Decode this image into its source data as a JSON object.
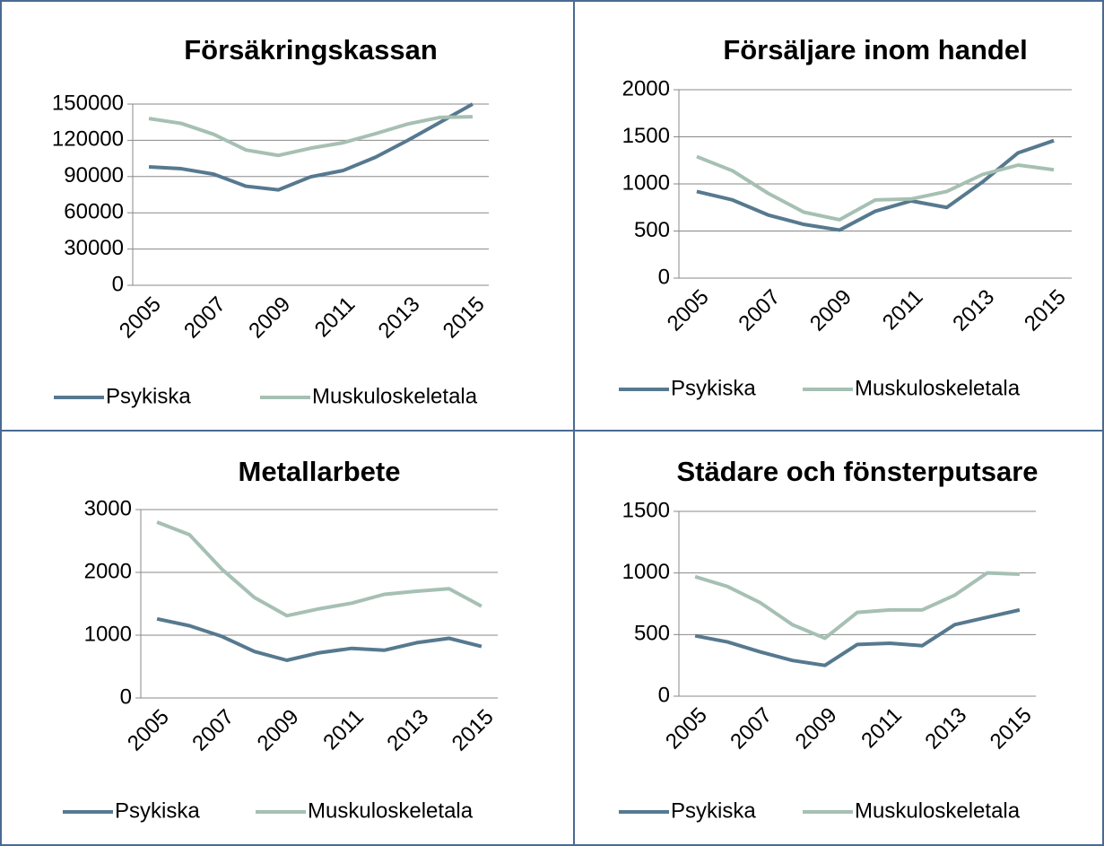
{
  "chart_data": [
    {
      "type": "line",
      "title": "Försäkringskassan",
      "categories": [
        "2005",
        null,
        "2007",
        null,
        "2009",
        null,
        "2011",
        null,
        "2013",
        null,
        "2015"
      ],
      "series": [
        {
          "name": "Psykiska",
          "color": "#56798f",
          "values": [
            98000,
            96500,
            92000,
            82000,
            79000,
            89800,
            95000,
            106000,
            120000,
            135000,
            150000
          ]
        },
        {
          "name": "Muskuloskeletala",
          "color": "#a6c0b3",
          "values": [
            138000,
            134000,
            125000,
            112000,
            107500,
            113500,
            118000,
            125500,
            133500,
            139000,
            139500
          ]
        }
      ],
      "ylim": [
        0,
        150000
      ],
      "yticks": [
        0,
        30000,
        60000,
        90000,
        120000,
        150000
      ],
      "grid": true
    },
    {
      "type": "line",
      "title": "Försäljare inom handel",
      "categories": [
        "2005",
        null,
        "2007",
        null,
        "2009",
        null,
        "2011",
        null,
        "2013",
        null,
        "2015"
      ],
      "series": [
        {
          "name": "Psykiska",
          "color": "#56798f",
          "values": [
            920,
            830,
            670,
            570,
            510,
            710,
            820,
            750,
            1020,
            1330,
            1460
          ]
        },
        {
          "name": "Muskuloskeletala",
          "color": "#a6c0b3",
          "values": [
            1290,
            1140,
            900,
            700,
            620,
            830,
            840,
            920,
            1100,
            1200,
            1150
          ]
        }
      ],
      "ylim": [
        0,
        2000
      ],
      "yticks": [
        0,
        500,
        1000,
        1500,
        2000
      ],
      "grid": true
    },
    {
      "type": "line",
      "title": "Metallarbete",
      "categories": [
        "2005",
        null,
        "2007",
        null,
        "2009",
        null,
        "2011",
        null,
        "2013",
        null,
        "2015"
      ],
      "series": [
        {
          "name": "Psykiska",
          "color": "#56798f",
          "values": [
            1260,
            1150,
            980,
            740,
            600,
            720,
            790,
            760,
            880,
            950,
            820
          ]
        },
        {
          "name": "Muskuloskeletala",
          "color": "#a6c0b3",
          "values": [
            2800,
            2600,
            2050,
            1600,
            1310,
            1420,
            1510,
            1650,
            1700,
            1740,
            1460
          ]
        }
      ],
      "ylim": [
        0,
        3000
      ],
      "yticks": [
        0,
        1000,
        2000,
        3000
      ],
      "grid": true
    },
    {
      "type": "line",
      "title": "Städare och fönsterputsare",
      "categories": [
        "2005",
        null,
        "2007",
        null,
        "2009",
        null,
        "2011",
        null,
        "2013",
        null,
        "2015"
      ],
      "series": [
        {
          "name": "Psykiska",
          "color": "#56798f",
          "values": [
            490,
            440,
            360,
            290,
            250,
            420,
            430,
            410,
            580,
            640,
            700
          ]
        },
        {
          "name": "Muskuloskeletala",
          "color": "#a6c0b3",
          "values": [
            970,
            890,
            760,
            580,
            470,
            680,
            700,
            700,
            820,
            1000,
            990
          ]
        }
      ],
      "ylim": [
        0,
        1500
      ],
      "yticks": [
        0,
        500,
        1000,
        1500
      ],
      "grid": true
    }
  ]
}
